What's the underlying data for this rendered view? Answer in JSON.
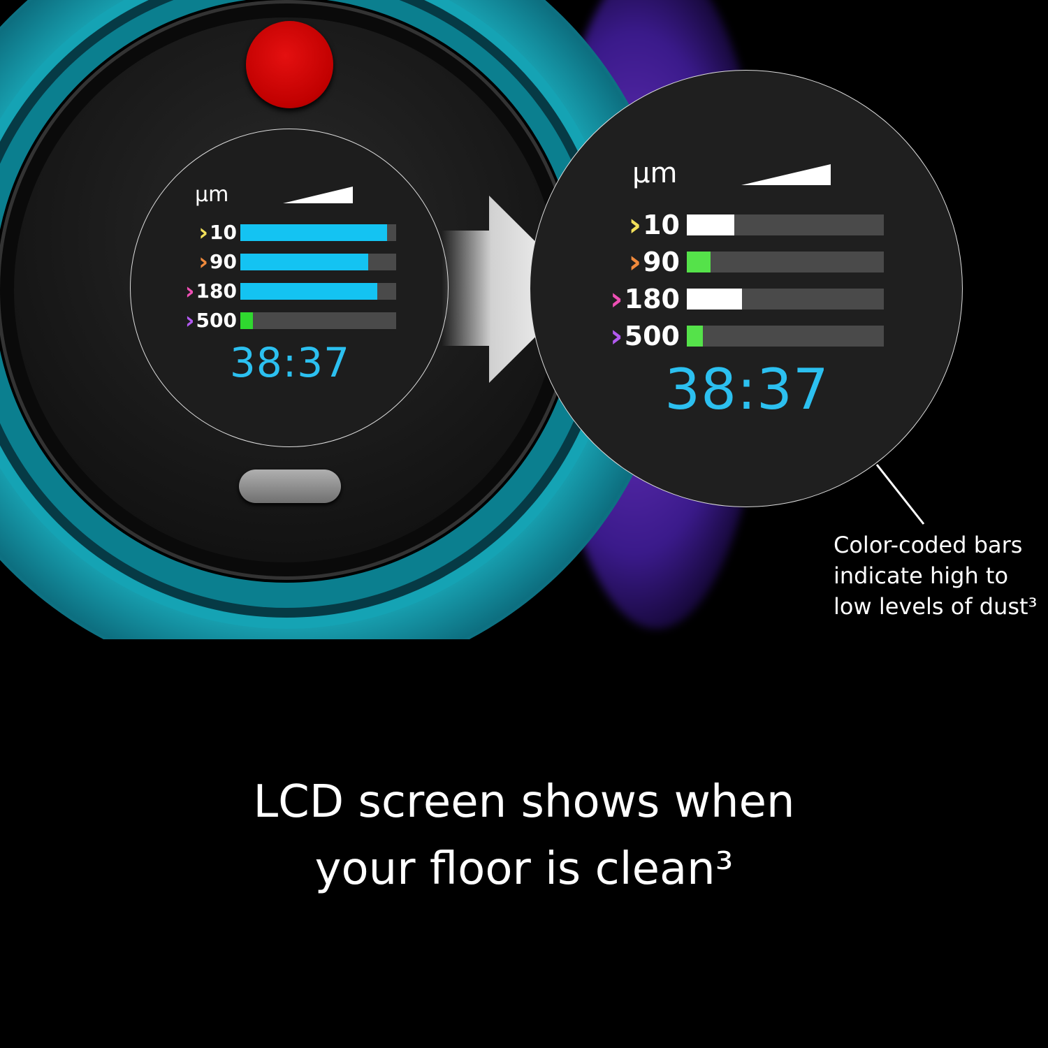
{
  "screen": {
    "unit": "µm",
    "before": {
      "rows": [
        {
          "size": "10",
          "chevron_color": "#f2e05a",
          "bar_color": "#14c3f2",
          "fill": 0.94
        },
        {
          "size": "90",
          "chevron_color": "#f08a3c",
          "bar_color": "#14c3f2",
          "fill": 0.82
        },
        {
          "size": "180",
          "chevron_color": "#ee4fb4",
          "bar_color": "#14c3f2",
          "fill": 0.88
        },
        {
          "size": "500",
          "chevron_color": "#b25af0",
          "bar_color": "#2fd82f",
          "fill": 0.08
        }
      ],
      "time": "38:37"
    },
    "after": {
      "rows": [
        {
          "size": "10",
          "chevron_color": "#f2e05a",
          "bar_color": "#ffffff",
          "fill": 0.24
        },
        {
          "size": "90",
          "chevron_color": "#f08a3c",
          "bar_color": "#55e24a",
          "fill": 0.12
        },
        {
          "size": "180",
          "chevron_color": "#ee4fb4",
          "bar_color": "#ffffff",
          "fill": 0.28
        },
        {
          "size": "500",
          "chevron_color": "#b25af0",
          "bar_color": "#55e24a",
          "fill": 0.08
        }
      ],
      "time": "38:37"
    }
  },
  "callout": {
    "lines": [
      "Color-coded bars",
      "indicate high to",
      "low levels of dust³"
    ]
  },
  "caption": {
    "line1": "LCD screen shows when",
    "line2": "your floor is clean³"
  },
  "colors": {
    "device_teal": "#18a0b0",
    "button_red": "#d00000",
    "time_blue": "#2cc0f0"
  }
}
